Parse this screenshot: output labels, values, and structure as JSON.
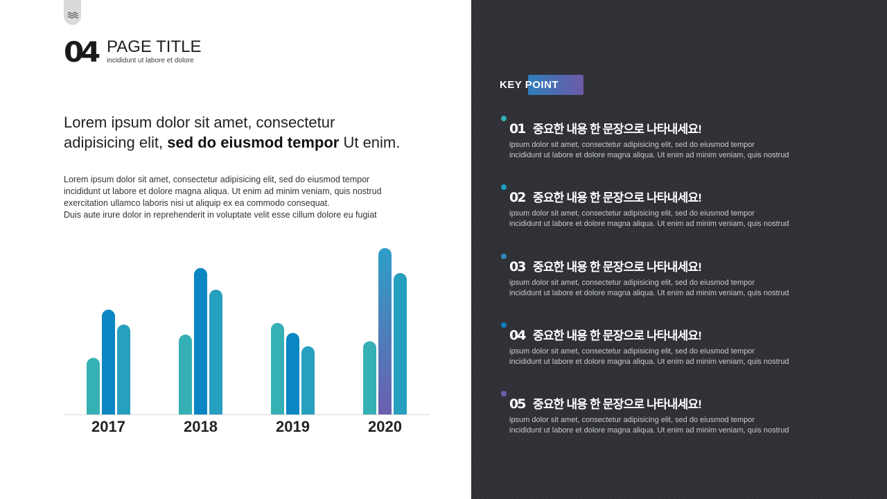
{
  "header": {
    "page_number": "04",
    "title": "PAGE TITLE",
    "subtitle": "incididunt ut labore et dolore"
  },
  "lead": {
    "line1": "Lorem ipsum dolor sit amet, consectetur",
    "line2_start": "adipisicing elit, ",
    "line2_bold": "sed do eiusmod tempor",
    "line2_end": " Ut enim."
  },
  "body": {
    "lines": [
      "Lorem ipsum dolor sit amet, consectetur adipisicing elit, sed do eiusmod tempor",
      "incididunt ut labore et dolore magna aliqua. Ut enim ad minim veniam, quis nostrud",
      "exercitation ullamco laboris nisi ut aliquip ex ea commodo consequat.",
      "Duis aute irure dolor in reprehenderit in voluptate velit esse cillum dolore eu fugiat"
    ]
  },
  "chart_data": {
    "type": "bar",
    "categories": [
      "2017",
      "2018",
      "2019",
      "2020"
    ],
    "series": [
      {
        "values": [
          34,
          48,
          55,
          44
        ]
      },
      {
        "values": [
          63,
          88,
          49,
          100
        ]
      },
      {
        "values": [
          54,
          75,
          41,
          85
        ]
      }
    ],
    "ylim": [
      0,
      100
    ],
    "grid": false,
    "colors": {
      "series1": "#35b0b5",
      "series2": "#0a86c3",
      "series3": "#279fbe",
      "highlight_top": "#2e9fc8",
      "highlight_bottom": "#6b5fb0",
      "baseline": "#d8d8d8",
      "label": "#222222"
    }
  },
  "panel": {
    "key_point_label": "KEY POINT",
    "items": [
      {
        "num": "01",
        "title": "중요한 내용 한 문장으로 나타내세요!",
        "dot_color": "#2fb1b5",
        "desc1": "ipsum dolor sit amet, consectetur adipisicing elit, sed do eiusmod tempor",
        "desc2": "incididunt ut labore et  dolore magna aliqua. Ut enim ad minim veniam, quis nostrud"
      },
      {
        "num": "02",
        "title": "중요한 내용 한 문장으로 나타내세요!",
        "dot_color": "#1c9fc1",
        "desc1": "ipsum dolor sit amet, consectetur adipisicing elit, sed do eiusmod tempor",
        "desc2": "incididunt ut labore et  dolore magna aliqua. Ut enim ad minim veniam, quis nostrud"
      },
      {
        "num": "03",
        "title": "중요한 내용 한 문장으로 나타내세요!",
        "dot_color": "#2e86b8",
        "desc1": "ipsum dolor sit amet, consectetur adipisicing elit, sed do eiusmod tempor",
        "desc2": "incididunt ut labore et  dolore magna aliqua. Ut enim ad minim veniam, quis nostrud"
      },
      {
        "num": "04",
        "title": "중요한 내용 한 문장으로 나타내세요!",
        "dot_color": "#0f7ec0",
        "desc1": "ipsum dolor sit amet, consectetur adipisicing elit, sed do eiusmod tempor",
        "desc2": "incididunt ut labore et  dolore magna aliqua. Ut enim ad minim veniam, quis nostrud"
      },
      {
        "num": "05",
        "title": "중요한 내용 한 문장으로 나타내세요!",
        "dot_color": "#6a5fae",
        "desc1": "ipsum dolor sit amet, consectetur adipisicing elit, sed do eiusmod tempor",
        "desc2": "incididunt ut labore et  dolore magna aliqua. Ut enim ad minim veniam, quis nostrud"
      }
    ]
  }
}
